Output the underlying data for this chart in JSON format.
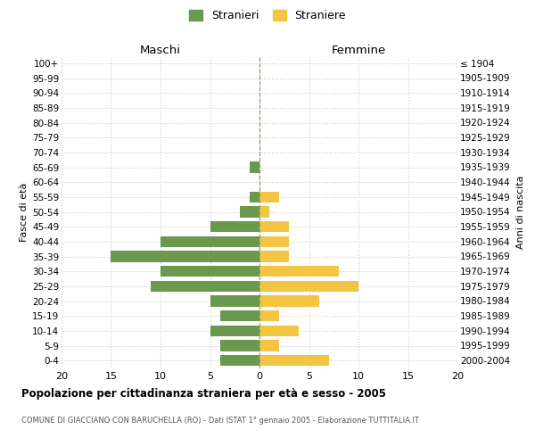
{
  "age_groups": [
    "0-4",
    "5-9",
    "10-14",
    "15-19",
    "20-24",
    "25-29",
    "30-34",
    "35-39",
    "40-44",
    "45-49",
    "50-54",
    "55-59",
    "60-64",
    "65-69",
    "70-74",
    "75-79",
    "80-84",
    "85-89",
    "90-94",
    "95-99",
    "100+"
  ],
  "birth_years": [
    "2000-2004",
    "1995-1999",
    "1990-1994",
    "1985-1989",
    "1980-1984",
    "1975-1979",
    "1970-1974",
    "1965-1969",
    "1960-1964",
    "1955-1959",
    "1950-1954",
    "1945-1949",
    "1940-1944",
    "1935-1939",
    "1930-1934",
    "1925-1929",
    "1920-1924",
    "1915-1919",
    "1910-1914",
    "1905-1909",
    "≤ 1904"
  ],
  "maschi": [
    4,
    4,
    5,
    4,
    5,
    11,
    10,
    15,
    10,
    5,
    2,
    1,
    0,
    1,
    0,
    0,
    0,
    0,
    0,
    0,
    0
  ],
  "femmine": [
    7,
    2,
    4,
    2,
    6,
    10,
    8,
    3,
    3,
    3,
    1,
    2,
    0,
    0,
    0,
    0,
    0,
    0,
    0,
    0,
    0
  ],
  "male_color": "#6a994e",
  "female_color": "#f4c542",
  "background_color": "#ffffff",
  "grid_color": "#cccccc",
  "title": "Popolazione per cittadinanza straniera per età e sesso - 2005",
  "subtitle": "COMUNE DI GIACCIANO CON BARUCHELLA (RO) - Dati ISTAT 1° gennaio 2005 - Elaborazione TUTTITALIA.IT",
  "ylabel_left": "Fasce di età",
  "ylabel_right": "Anni di nascita",
  "legend_male": "Stranieri",
  "legend_female": "Straniere",
  "header_left": "Maschi",
  "header_right": "Femmine",
  "xlim": 20
}
